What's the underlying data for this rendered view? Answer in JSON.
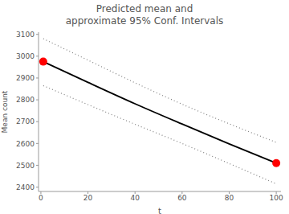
{
  "chart_data": {
    "type": "line",
    "title": [
      "Predicted mean and",
      "approximate 95% Conf. Intervals"
    ],
    "x_label": "t",
    "y_label": "Mean count",
    "x": [
      1,
      20,
      40,
      60,
      80,
      100
    ],
    "series": [
      {
        "type": "line",
        "color": "#000000",
        "line_style": "solid",
        "values": [
          2975,
          2880,
          2782,
          2689,
          2598,
          2510
        ]
      },
      {
        "type": "line",
        "color": "#808080",
        "line_style": "dotted",
        "values": [
          3080,
          2982,
          2878,
          2780,
          2690,
          2605
        ]
      },
      {
        "type": "line",
        "color": "#808080",
        "line_style": "dotted",
        "values": [
          2865,
          2778,
          2688,
          2600,
          2508,
          2415
        ]
      },
      {
        "type": "scatter",
        "color": "#ff0000",
        "marker": "circle",
        "values": [
          2975,
          null,
          null,
          null,
          null,
          2510
        ]
      }
    ],
    "xlim": [
      -1,
      102
    ],
    "ylim": [
      2380,
      3110
    ],
    "xticks": [
      0,
      20,
      40,
      60,
      80,
      100
    ],
    "yticks": [
      2400,
      2500,
      2600,
      2700,
      2800,
      2900,
      3000,
      3100
    ],
    "grid": false
  }
}
